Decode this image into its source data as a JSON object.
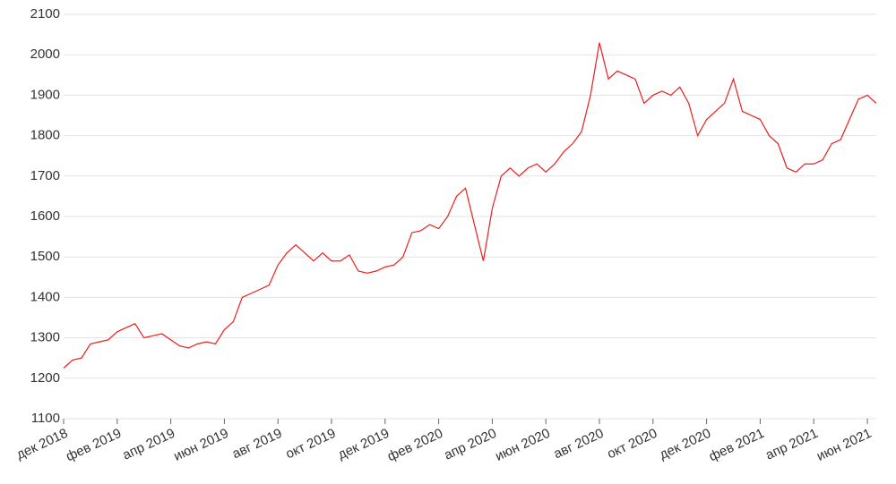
{
  "chart_data": {
    "type": "line",
    "color": "#ee1c1c",
    "grid": true,
    "categories": [
      "дек 2018",
      null,
      null,
      null,
      null,
      null,
      "фев 2019",
      null,
      null,
      null,
      null,
      null,
      "апр 2019",
      null,
      null,
      null,
      null,
      null,
      "июн 2019",
      null,
      null,
      null,
      null,
      null,
      "авг 2019",
      null,
      null,
      null,
      null,
      null,
      "окт 2019",
      null,
      null,
      null,
      null,
      null,
      "дек 2019",
      null,
      null,
      null,
      null,
      null,
      "фев 2020",
      null,
      null,
      null,
      null,
      null,
      "апр 2020",
      null,
      null,
      null,
      null,
      null,
      "июн 2020",
      null,
      null,
      null,
      null,
      null,
      "авг 2020",
      null,
      null,
      null,
      null,
      null,
      "окт 2020",
      null,
      null,
      null,
      null,
      null,
      "дек 2020",
      null,
      null,
      null,
      null,
      null,
      "фев 2021",
      null,
      null,
      null,
      null,
      null,
      "апр 2021",
      null,
      null,
      null,
      null,
      null,
      "июн 2021",
      null
    ],
    "values": [
      1225,
      1245,
      1250,
      1285,
      1290,
      1295,
      1315,
      1325,
      1335,
      1300,
      1305,
      1310,
      1295,
      1280,
      1275,
      1285,
      1290,
      1285,
      1320,
      1340,
      1400,
      1410,
      1420,
      1430,
      1480,
      1510,
      1530,
      1510,
      1490,
      1510,
      1490,
      1490,
      1505,
      1465,
      1460,
      1465,
      1475,
      1480,
      1500,
      1560,
      1565,
      1580,
      1570,
      1600,
      1650,
      1670,
      1580,
      1490,
      1620,
      1700,
      1720,
      1700,
      1720,
      1730,
      1710,
      1730,
      1760,
      1780,
      1810,
      1900,
      2030,
      1940,
      1960,
      1950,
      1940,
      1880,
      1900,
      1910,
      1900,
      1920,
      1880,
      1800,
      1840,
      1860,
      1880,
      1940,
      1860,
      1850,
      1840,
      1800,
      1780,
      1720,
      1710,
      1730,
      1730,
      1740,
      1780,
      1790,
      1840,
      1890,
      1900,
      1880
    ],
    "ylim": [
      1100,
      2100
    ],
    "yticks": [
      1100,
      1200,
      1300,
      1400,
      1500,
      1600,
      1700,
      1800,
      1900,
      2000,
      2100
    ]
  }
}
